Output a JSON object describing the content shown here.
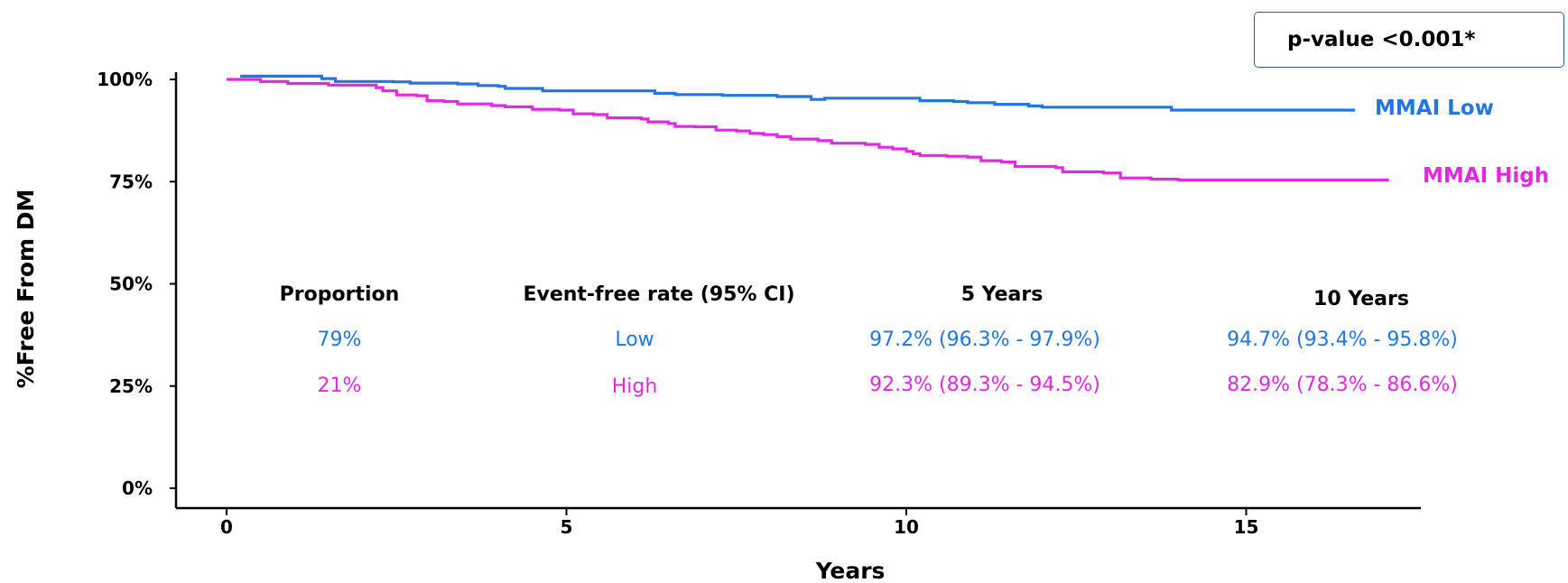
{
  "chart_data": {
    "type": "line",
    "title": "",
    "xlabel": "Years",
    "ylabel": "%Free From DM",
    "xlim": [
      -0.7,
      17.7
    ],
    "ylim": [
      -5,
      103
    ],
    "x_ticks": [
      0,
      5,
      10,
      15
    ],
    "x_tick_labels": [
      "0",
      "5",
      "10",
      "15"
    ],
    "y_ticks": [
      0,
      25,
      50,
      75,
      100
    ],
    "y_tick_labels": [
      "0%",
      "25%",
      "50%",
      "75%",
      "100%"
    ],
    "grid": false,
    "legend": "line-end labels",
    "series": [
      {
        "name": "MMAI Low",
        "color": "#2176e3",
        "step": true,
        "points": [
          [
            0.2,
            100.8
          ],
          [
            1.4,
            100.2
          ],
          [
            1.6,
            99.5
          ],
          [
            2.45,
            99.4
          ],
          [
            2.7,
            99.1
          ],
          [
            3.4,
            98.9
          ],
          [
            3.7,
            98.5
          ],
          [
            4.0,
            98.3
          ],
          [
            4.1,
            97.8
          ],
          [
            4.5,
            97.8
          ],
          [
            4.65,
            97.2
          ],
          [
            6.3,
            96.6
          ],
          [
            6.6,
            96.3
          ],
          [
            7.3,
            96.1
          ],
          [
            8.1,
            95.8
          ],
          [
            8.4,
            95.8
          ],
          [
            8.6,
            95.1
          ],
          [
            8.8,
            95.4
          ],
          [
            9.7,
            95.4
          ],
          [
            10.2,
            94.8
          ],
          [
            10.7,
            94.6
          ],
          [
            10.9,
            94.3
          ],
          [
            11.3,
            93.9
          ],
          [
            11.8,
            93.5
          ],
          [
            12.0,
            93.2
          ],
          [
            13.9,
            93.2
          ],
          [
            13.9,
            92.5
          ],
          [
            16.6,
            92.5
          ]
        ],
        "label_position": "right"
      },
      {
        "name": "MMAI High",
        "color": "#e02ae2",
        "step": true,
        "points": [
          [
            0,
            100
          ],
          [
            0.5,
            99.5
          ],
          [
            0.9,
            99.0
          ],
          [
            1.5,
            98.6
          ],
          [
            2.2,
            98.0
          ],
          [
            2.3,
            97.2
          ],
          [
            2.5,
            96.2
          ],
          [
            2.8,
            96.0
          ],
          [
            2.95,
            94.8
          ],
          [
            3.2,
            94.6
          ],
          [
            3.4,
            94.0
          ],
          [
            3.9,
            93.6
          ],
          [
            4.1,
            93.3
          ],
          [
            4.5,
            92.7
          ],
          [
            4.9,
            92.5
          ],
          [
            5.1,
            91.6
          ],
          [
            5.4,
            91.4
          ],
          [
            5.6,
            90.6
          ],
          [
            6.1,
            90.3
          ],
          [
            6.2,
            89.6
          ],
          [
            6.5,
            89.2
          ],
          [
            6.6,
            88.5
          ],
          [
            6.9,
            88.4
          ],
          [
            7.2,
            87.6
          ],
          [
            7.5,
            87.4
          ],
          [
            7.7,
            86.8
          ],
          [
            7.9,
            86.5
          ],
          [
            8.1,
            86.0
          ],
          [
            8.3,
            85.4
          ],
          [
            8.7,
            85.0
          ],
          [
            8.9,
            84.4
          ],
          [
            9.4,
            84.1
          ],
          [
            9.6,
            83.4
          ],
          [
            9.8,
            83.0
          ],
          [
            10.0,
            82.4
          ],
          [
            10.1,
            81.8
          ],
          [
            10.2,
            81.4
          ],
          [
            10.6,
            81.2
          ],
          [
            10.9,
            81.0
          ],
          [
            11.1,
            80.1
          ],
          [
            11.4,
            79.8
          ],
          [
            11.6,
            78.7
          ],
          [
            12.2,
            78.4
          ],
          [
            12.3,
            77.4
          ],
          [
            12.9,
            77.1
          ],
          [
            13.15,
            75.9
          ],
          [
            13.5,
            75.9
          ],
          [
            13.6,
            75.6
          ],
          [
            13.9,
            75.6
          ],
          [
            14.0,
            75.4
          ],
          [
            17.1,
            75.4
          ]
        ],
        "label_position": "right"
      }
    ],
    "annotation": "p-value <0.001*",
    "table": {
      "headers": [
        "Proportion",
        "Event-free rate (95% CI)",
        "5 Years",
        "10 Years"
      ],
      "rows": [
        {
          "proportion": "79%",
          "group": "Low",
          "five_years": "97.2% (96.3% - 97.9%)",
          "ten_years": "94.7% (93.4% - 95.8%)",
          "color": "#2176e3"
        },
        {
          "proportion": "21%",
          "group": "High",
          "five_years": "92.3% (89.3% - 94.5%)",
          "ten_years": "82.9% (78.3% - 86.6%)",
          "color": "#e02ae2"
        }
      ]
    }
  }
}
